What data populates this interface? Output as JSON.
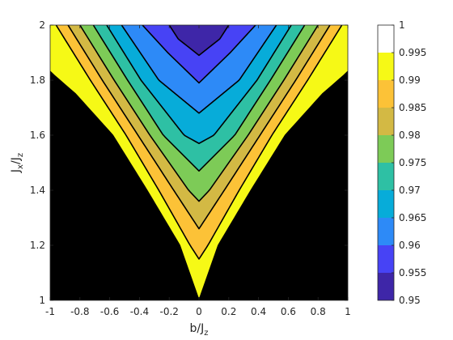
{
  "chart_data": {
    "type": "contour",
    "xlabel": {
      "main": "b/J",
      "sub": "z"
    },
    "ylabel": {
      "main": "J",
      "sub1": "x",
      "mid": "/J",
      "sub2": "z"
    },
    "xlim": [
      -1,
      1
    ],
    "ylim": [
      1,
      2
    ],
    "xticks": [
      "-1",
      "-0.8",
      "-0.6",
      "-0.4",
      "-0.2",
      "0",
      "0.2",
      "0.4",
      "0.6",
      "0.8",
      "1"
    ],
    "yticks": [
      "1",
      "1.2",
      "1.4",
      "1.6",
      "1.8",
      "2"
    ],
    "colorbar": {
      "range": [
        0.95,
        1
      ],
      "ticks": [
        "0.95",
        "0.955",
        "0.96",
        "0.965",
        "0.97",
        "0.975",
        "0.98",
        "0.985",
        "0.99",
        "0.995",
        "1"
      ]
    },
    "levels": [
      0.955,
      0.96,
      0.965,
      0.97,
      0.975,
      0.98,
      0.985,
      0.99,
      0.995
    ],
    "band_colors": [
      "#3e26a8",
      "#4743f5",
      "#2d8af7",
      "#07acd9",
      "#2ec0a4",
      "#7dcb57",
      "#d3b944",
      "#fcc237",
      "#f6f916"
    ],
    "contours": [
      {
        "level": 0.995,
        "b_at_J": [
          [
            1.0,
            0
          ],
          [
            1.2,
            0.13
          ],
          [
            1.4,
            0.35
          ],
          [
            1.6,
            0.58
          ],
          [
            1.75,
            0.83
          ],
          [
            1.83,
            1.0
          ]
        ]
      },
      {
        "level": 0.99,
        "b_at_J": [
          [
            1.15,
            0
          ],
          [
            1.2,
            0.06
          ],
          [
            1.4,
            0.27
          ],
          [
            1.6,
            0.49
          ],
          [
            1.8,
            0.73
          ],
          [
            2.0,
            0.96
          ]
        ]
      },
      {
        "level": 0.985,
        "b_at_J": [
          [
            1.26,
            0
          ],
          [
            1.4,
            0.17
          ],
          [
            1.6,
            0.41
          ],
          [
            1.8,
            0.65
          ],
          [
            2.0,
            0.88
          ]
        ]
      },
      {
        "level": 0.98,
        "b_at_J": [
          [
            1.36,
            0
          ],
          [
            1.4,
            0.07
          ],
          [
            1.6,
            0.33
          ],
          [
            1.8,
            0.57
          ],
          [
            2.0,
            0.8
          ]
        ]
      },
      {
        "level": 0.975,
        "b_at_J": [
          [
            1.47,
            0
          ],
          [
            1.6,
            0.24
          ],
          [
            1.8,
            0.48
          ],
          [
            2.0,
            0.71
          ]
        ]
      },
      {
        "level": 0.97,
        "b_at_J": [
          [
            1.57,
            0
          ],
          [
            1.6,
            0.1
          ],
          [
            1.8,
            0.39
          ],
          [
            2.0,
            0.62
          ]
        ]
      },
      {
        "level": 0.965,
        "b_at_J": [
          [
            1.68,
            0
          ],
          [
            1.8,
            0.27
          ],
          [
            2.0,
            0.52
          ]
        ]
      },
      {
        "level": 0.96,
        "b_at_J": [
          [
            1.79,
            0
          ],
          [
            1.9,
            0.21
          ],
          [
            2.0,
            0.38
          ]
        ]
      },
      {
        "level": 0.955,
        "b_at_J": [
          [
            1.89,
            0
          ],
          [
            1.95,
            0.14
          ],
          [
            2.0,
            0.2
          ]
        ]
      }
    ]
  }
}
